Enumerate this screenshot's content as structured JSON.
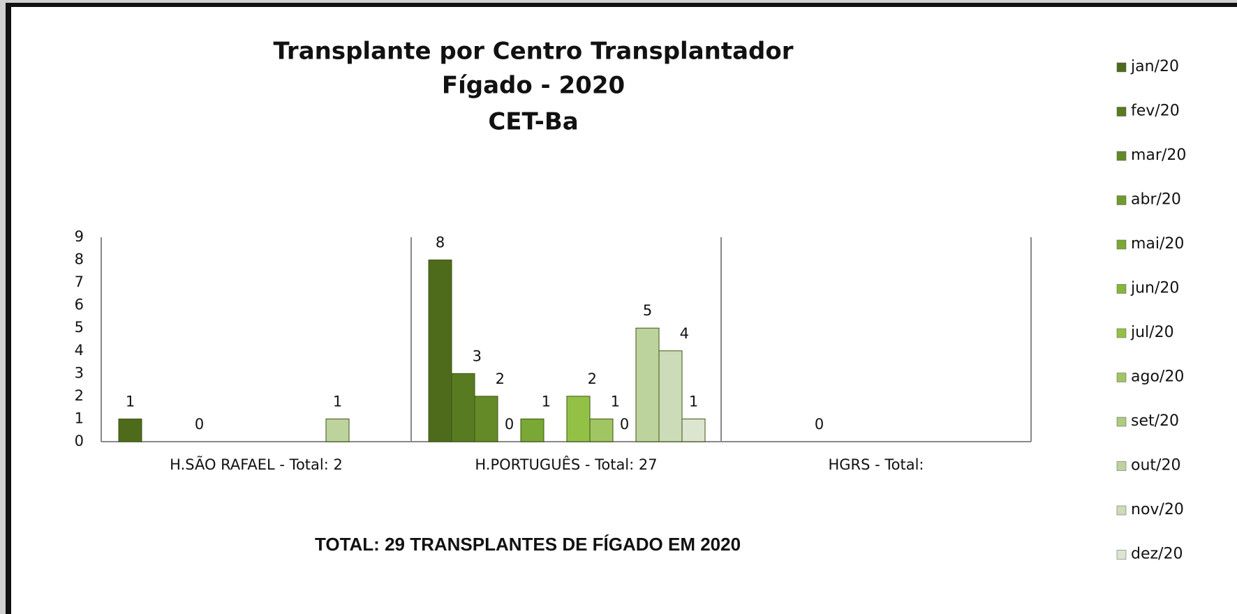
{
  "chart_data": {
    "type": "bar",
    "title": [
      "Transplante por Centro Transplantador",
      "Fígado - 2020",
      "CET-Ba"
    ],
    "footer": "TOTAL: 29 TRANSPLANTES DE FÍGADO EM 2020",
    "categories": [
      "H.SÃO RAFAEL - Total: 2",
      "H.PORTUGUÊS - Total: 27",
      "HGRS - Total:"
    ],
    "series": [
      {
        "name": "jan/20",
        "color": "#4e6b1c",
        "values": [
          1,
          8,
          null
        ]
      },
      {
        "name": "fev/20",
        "color": "#587a21",
        "values": [
          null,
          3,
          null
        ]
      },
      {
        "name": "mar/20",
        "color": "#648a27",
        "values": [
          null,
          2,
          null
        ]
      },
      {
        "name": "abr/20",
        "color": "#6f9a2d",
        "values": [
          0,
          0,
          0
        ]
      },
      {
        "name": "mai/20",
        "color": "#7aa834",
        "values": [
          null,
          1,
          null
        ]
      },
      {
        "name": "jun/20",
        "color": "#86b63c",
        "values": [
          null,
          null,
          null
        ]
      },
      {
        "name": "jul/20",
        "color": "#93c146",
        "values": [
          null,
          2,
          null
        ]
      },
      {
        "name": "ago/20",
        "color": "#a0c562",
        "values": [
          null,
          1,
          null
        ]
      },
      {
        "name": "set/20",
        "color": "#aecb82",
        "values": [
          null,
          0,
          null
        ]
      },
      {
        "name": "out/20",
        "color": "#bdd39e",
        "values": [
          1,
          5,
          null
        ]
      },
      {
        "name": "nov/20",
        "color": "#ccdbb8",
        "values": [
          null,
          4,
          null
        ]
      },
      {
        "name": "dez/20",
        "color": "#dbe5cf",
        "values": [
          null,
          1,
          null
        ]
      }
    ],
    "ylim": [
      0,
      9
    ],
    "yticks": [
      0,
      1,
      2,
      3,
      4,
      5,
      6,
      7,
      8,
      9
    ],
    "grid": false,
    "legend": "right"
  }
}
